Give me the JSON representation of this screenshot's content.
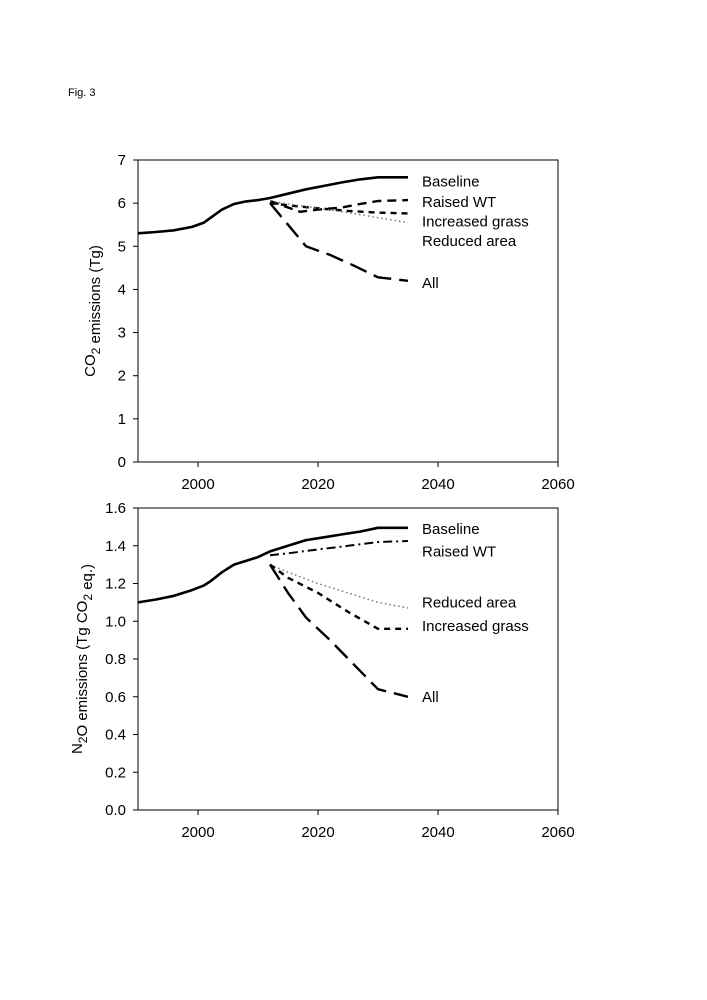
{
  "figure_label": "Fig. 3",
  "chart_data": [
    {
      "type": "line",
      "id": "co2",
      "ylabel": "CO2 emissions (Tg)",
      "ylabel_main": "CO",
      "ylabel_sub": "2",
      "ylabel_rest": " emissions (Tg)",
      "xlim": [
        1990,
        2060
      ],
      "ylim": [
        0,
        7
      ],
      "xticks": [
        2000,
        2020,
        2040,
        2060
      ],
      "xtick_labels": [
        "2000",
        "2020",
        "2040",
        "2060"
      ],
      "yticks": [
        0,
        1,
        2,
        3,
        4,
        5,
        6,
        7
      ],
      "ytick_labels": [
        "0",
        "1",
        "2",
        "3",
        "4",
        "5",
        "6",
        "7"
      ],
      "series": [
        {
          "name": "Baseline",
          "style": "solid",
          "x": [
            1990,
            1993,
            1996,
            1999,
            2001,
            2002,
            2004,
            2006,
            2008,
            2010,
            2012,
            2015,
            2018,
            2021,
            2024,
            2027,
            2030,
            2035
          ],
          "y": [
            5.3,
            5.33,
            5.37,
            5.45,
            5.55,
            5.65,
            5.85,
            5.98,
            6.04,
            6.07,
            6.12,
            6.22,
            6.32,
            6.4,
            6.48,
            6.55,
            6.6,
            6.6
          ]
        },
        {
          "name": "Raised WT",
          "style": "dash",
          "x": [
            2012,
            2014,
            2017,
            2020,
            2024,
            2027,
            2030,
            2035
          ],
          "y": [
            6.05,
            5.95,
            5.8,
            5.85,
            5.9,
            5.98,
            6.05,
            6.07
          ]
        },
        {
          "name": "Increased grass",
          "style": "shortdash",
          "x": [
            2012,
            2015,
            2020,
            2025,
            2030,
            2035
          ],
          "y": [
            6.0,
            5.95,
            5.88,
            5.82,
            5.78,
            5.76
          ]
        },
        {
          "name": "Reduced area",
          "style": "dot",
          "x": [
            2012,
            2015,
            2020,
            2025,
            2030,
            2035
          ],
          "y": [
            6.05,
            5.98,
            5.88,
            5.78,
            5.66,
            5.55
          ]
        },
        {
          "name": "All",
          "style": "longdash",
          "x": [
            2012,
            2015,
            2018,
            2022,
            2026,
            2030,
            2035
          ],
          "y": [
            6.0,
            5.5,
            5.0,
            4.8,
            4.55,
            4.28,
            4.2
          ]
        }
      ],
      "legend": [
        {
          "label": "Baseline",
          "y": 6.5
        },
        {
          "label": "Raised WT",
          "y": 6.03
        },
        {
          "label": "Increased grass",
          "y": 5.57
        },
        {
          "label": "Reduced area",
          "y": 5.12
        },
        {
          "label": "All",
          "y": 4.15
        }
      ]
    },
    {
      "type": "line",
      "id": "n2o",
      "ylabel": "N2O emissions (Tg CO2 eq.)",
      "ylabel_main": "N",
      "ylabel_sub": "2",
      "ylabel_rest": "O emissions (Tg CO",
      "ylabel_sub2": "2",
      "ylabel_end": " eq.)",
      "xlim": [
        1990,
        2060
      ],
      "ylim": [
        0.0,
        1.6
      ],
      "xticks": [
        2000,
        2020,
        2040,
        2060
      ],
      "xtick_labels": [
        "2000",
        "2020",
        "2040",
        "2060"
      ],
      "yticks": [
        0.0,
        0.2,
        0.4,
        0.6,
        0.8,
        1.0,
        1.2,
        1.4,
        1.6
      ],
      "ytick_labels": [
        "0.0",
        "0.2",
        "0.4",
        "0.6",
        "0.8",
        "1.0",
        "1.2",
        "1.4",
        "1.6"
      ],
      "series": [
        {
          "name": "Baseline",
          "style": "solid",
          "x": [
            1990,
            1993,
            1996,
            1999,
            2001,
            2002,
            2004,
            2006,
            2008,
            2010,
            2012,
            2015,
            2018,
            2021,
            2024,
            2027,
            2030,
            2035
          ],
          "y": [
            1.1,
            1.115,
            1.135,
            1.165,
            1.19,
            1.21,
            1.26,
            1.3,
            1.32,
            1.34,
            1.37,
            1.4,
            1.43,
            1.445,
            1.46,
            1.475,
            1.495,
            1.495
          ]
        },
        {
          "name": "Raised WT",
          "style": "dashdot",
          "x": [
            2012,
            2015,
            2020,
            2025,
            2030,
            2035
          ],
          "y": [
            1.35,
            1.36,
            1.38,
            1.4,
            1.42,
            1.425
          ]
        },
        {
          "name": "Reduced area",
          "style": "dot",
          "x": [
            2012,
            2015,
            2020,
            2025,
            2030,
            2035
          ],
          "y": [
            1.3,
            1.26,
            1.2,
            1.15,
            1.1,
            1.07
          ]
        },
        {
          "name": "Increased grass",
          "style": "shortdash",
          "x": [
            2012,
            2015,
            2020,
            2025,
            2030,
            2035
          ],
          "y": [
            1.3,
            1.23,
            1.15,
            1.05,
            0.96,
            0.96
          ]
        },
        {
          "name": "All",
          "style": "longdash",
          "x": [
            2012,
            2015,
            2018,
            2022,
            2026,
            2030,
            2035
          ],
          "y": [
            1.3,
            1.15,
            1.02,
            0.9,
            0.77,
            0.64,
            0.6
          ]
        }
      ],
      "legend": [
        {
          "label": "Baseline",
          "y": 1.49
        },
        {
          "label": "Raised WT",
          "y": 1.37
        },
        {
          "label": "Reduced area",
          "y": 1.1
        },
        {
          "label": "Increased grass",
          "y": 0.975
        },
        {
          "label": "All",
          "y": 0.6
        }
      ]
    }
  ]
}
